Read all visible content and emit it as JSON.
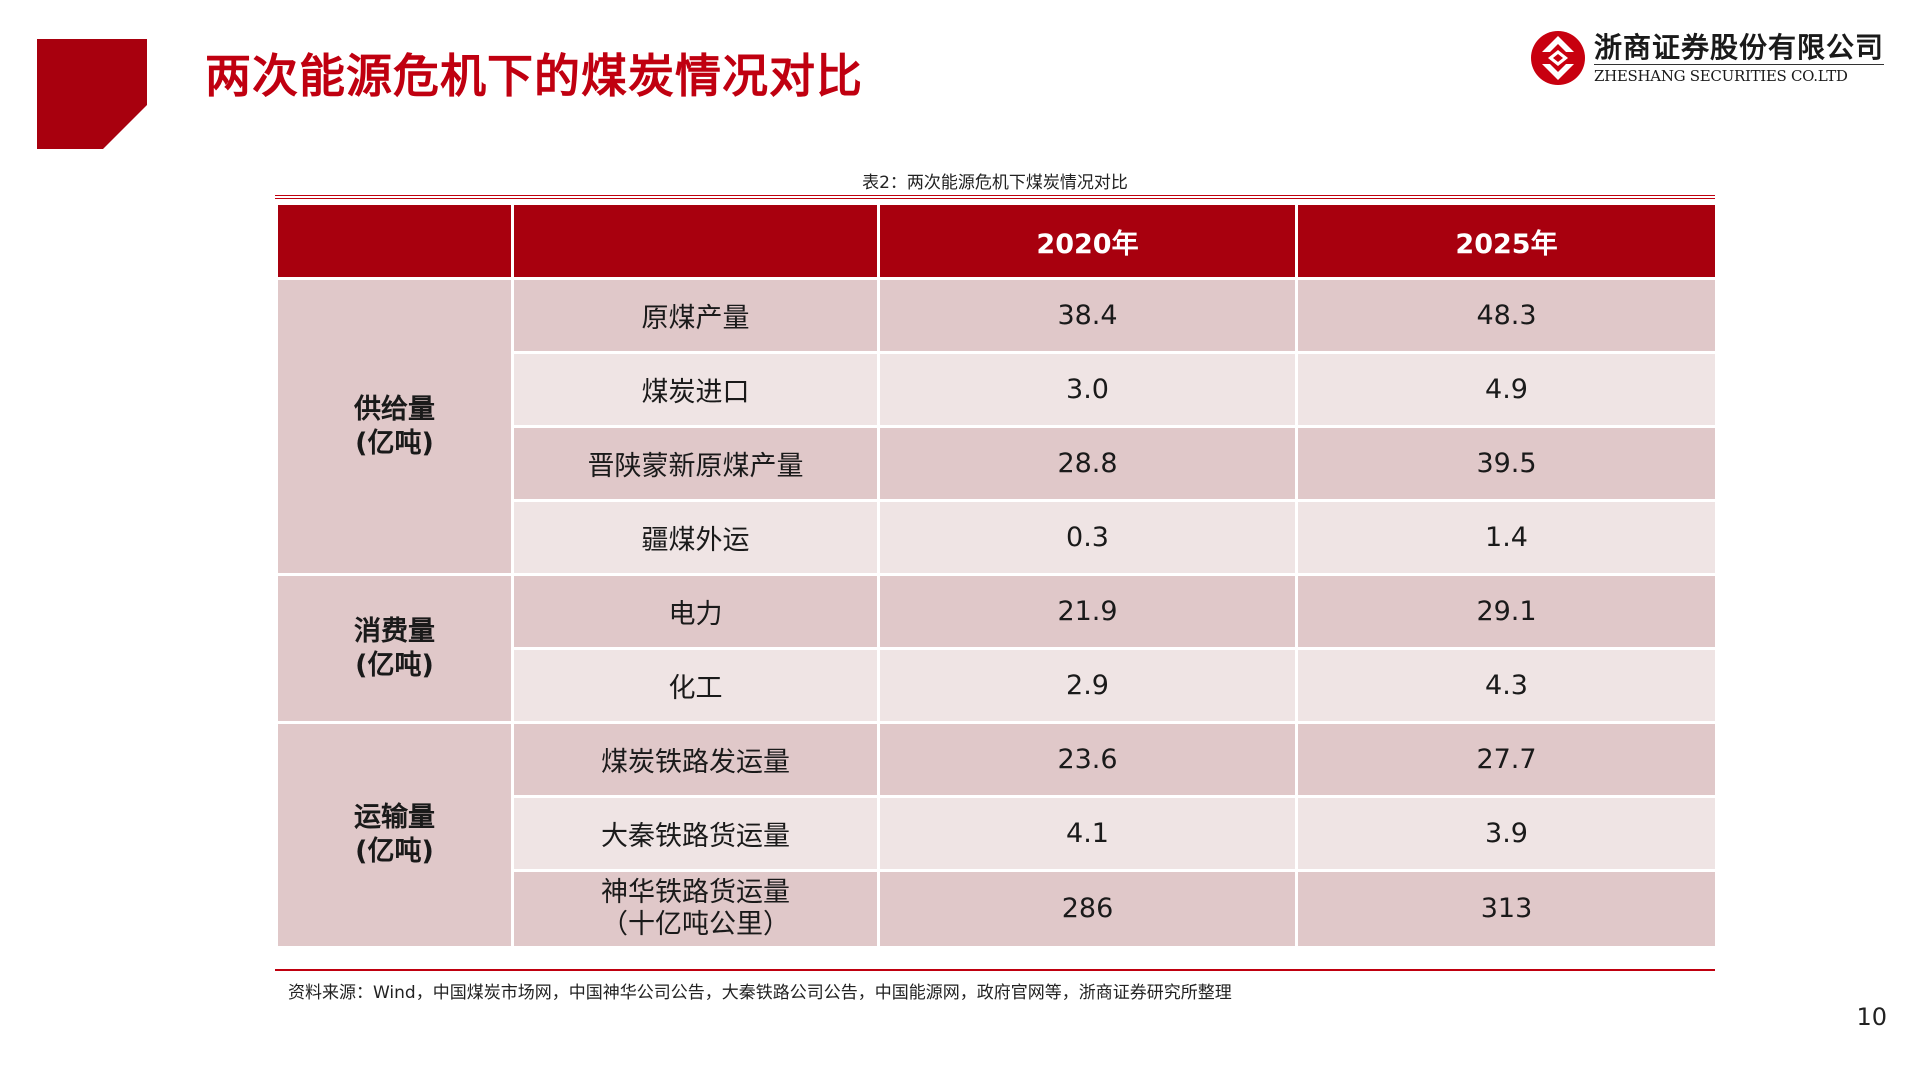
{
  "slide": {
    "title": "两次能源危机下的煤炭情况对比",
    "page_number": "10"
  },
  "brand": {
    "name_cn": "浙商证券股份有限公司",
    "name_en": "ZHESHANG SECURITIES CO.LTD",
    "logo_icon": "zheshang-logo-icon",
    "accent_color": "#c8000f"
  },
  "table": {
    "caption": "表2：两次能源危机下煤炭情况对比",
    "headers": [
      "",
      "",
      "2020年",
      "2025年"
    ],
    "groups": [
      {
        "label_line1": "供给量",
        "label_line2": "(亿吨)",
        "rows": [
          {
            "item": "原煤产量",
            "v2020": "38.4",
            "v2025": "48.3"
          },
          {
            "item": "煤炭进口",
            "v2020": "3.0",
            "v2025": "4.9"
          },
          {
            "item": "晋陕蒙新原煤产量",
            "v2020": "28.8",
            "v2025": "39.5"
          },
          {
            "item": "疆煤外运",
            "v2020": "0.3",
            "v2025": "1.4"
          }
        ]
      },
      {
        "label_line1": "消费量",
        "label_line2": "(亿吨)",
        "rows": [
          {
            "item": "电力",
            "v2020": "21.9",
            "v2025": "29.1"
          },
          {
            "item": "化工",
            "v2020": "2.9",
            "v2025": "4.3"
          }
        ]
      },
      {
        "label_line1": "运输量",
        "label_line2": "(亿吨)",
        "rows": [
          {
            "item": "煤炭铁路发运量",
            "v2020": "23.6",
            "v2025": "27.7"
          },
          {
            "item": "大秦铁路货运量",
            "v2020": "4.1",
            "v2025": "3.9"
          },
          {
            "item": "神华铁路货运量",
            "item_line2": "（十亿吨公里）",
            "v2020": "286",
            "v2025": "313"
          }
        ]
      }
    ],
    "source": "资料来源：Wind，中国煤炭市场网，中国神华公司公告，大秦铁路公司公告，中国能源网，政府官网等，浙商证券研究所整理"
  },
  "colors": {
    "header_red": "#a8000e",
    "row_dark": "#e0c8c9",
    "row_light": "#efe4e4",
    "title_red": "#c00010"
  }
}
